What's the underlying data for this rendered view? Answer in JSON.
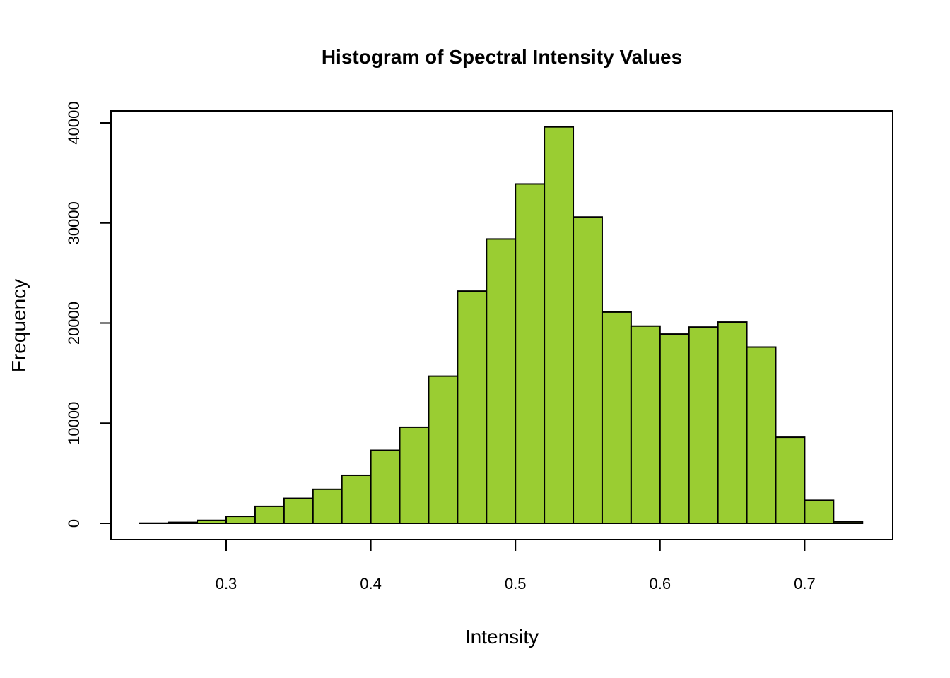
{
  "chart_data": {
    "type": "bar",
    "title": "Histogram of Spectral Intensity Values",
    "xlabel": "Intensity",
    "ylabel": "Frequency",
    "bar_color": "#9ACD32",
    "edge_color": "#000000",
    "xlim": [
      0.24,
      0.74
    ],
    "ylim": [
      0,
      40000
    ],
    "x_ticks": [
      0.3,
      0.4,
      0.5,
      0.6,
      0.7
    ],
    "x_tick_labels": [
      "0.3",
      "0.4",
      "0.5",
      "0.6",
      "0.7"
    ],
    "y_ticks": [
      0,
      10000,
      20000,
      30000,
      40000
    ],
    "y_tick_labels": [
      "0",
      "10000",
      "20000",
      "30000",
      "40000"
    ],
    "bin_width": 0.02,
    "bins": [
      {
        "start": 0.24,
        "end": 0.26,
        "count": 20
      },
      {
        "start": 0.26,
        "end": 0.28,
        "count": 100
      },
      {
        "start": 0.28,
        "end": 0.3,
        "count": 300
      },
      {
        "start": 0.3,
        "end": 0.32,
        "count": 700
      },
      {
        "start": 0.32,
        "end": 0.34,
        "count": 1700
      },
      {
        "start": 0.34,
        "end": 0.36,
        "count": 2500
      },
      {
        "start": 0.36,
        "end": 0.38,
        "count": 3400
      },
      {
        "start": 0.38,
        "end": 0.4,
        "count": 4800
      },
      {
        "start": 0.4,
        "end": 0.42,
        "count": 7300
      },
      {
        "start": 0.42,
        "end": 0.44,
        "count": 9600
      },
      {
        "start": 0.44,
        "end": 0.46,
        "count": 14700
      },
      {
        "start": 0.46,
        "end": 0.48,
        "count": 23200
      },
      {
        "start": 0.48,
        "end": 0.5,
        "count": 28400
      },
      {
        "start": 0.5,
        "end": 0.52,
        "count": 33900
      },
      {
        "start": 0.52,
        "end": 0.54,
        "count": 39600
      },
      {
        "start": 0.54,
        "end": 0.56,
        "count": 30600
      },
      {
        "start": 0.56,
        "end": 0.58,
        "count": 21100
      },
      {
        "start": 0.58,
        "end": 0.6,
        "count": 19700
      },
      {
        "start": 0.6,
        "end": 0.62,
        "count": 18900
      },
      {
        "start": 0.62,
        "end": 0.64,
        "count": 19600
      },
      {
        "start": 0.64,
        "end": 0.66,
        "count": 20100
      },
      {
        "start": 0.66,
        "end": 0.68,
        "count": 17600
      },
      {
        "start": 0.68,
        "end": 0.7,
        "count": 8600
      },
      {
        "start": 0.7,
        "end": 0.72,
        "count": 2300
      },
      {
        "start": 0.72,
        "end": 0.74,
        "count": 150
      }
    ],
    "grid": false,
    "legend": "none"
  }
}
